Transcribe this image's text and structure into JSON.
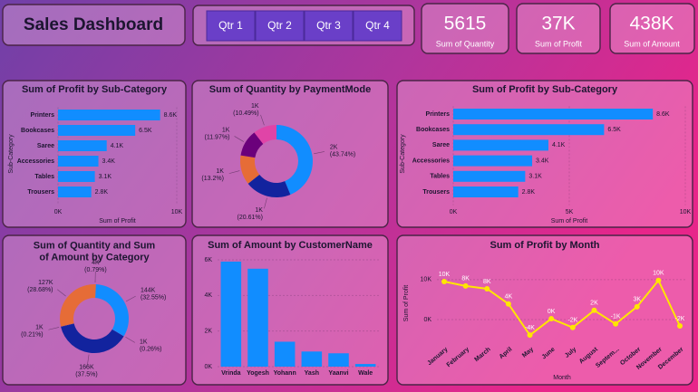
{
  "title": "Sales Dashboard",
  "slicer": [
    "Qtr 1",
    "Qtr 2",
    "Qtr 3",
    "Qtr 4"
  ],
  "kpis": [
    {
      "value": "5615",
      "label": "Sum of Quantity"
    },
    {
      "value": "37K",
      "label": "Sum of Profit"
    },
    {
      "value": "438K",
      "label": "Sum of Amount"
    }
  ],
  "chart_data": [
    {
      "type": "hbar",
      "title": "Sum of Profit by Sub-Category",
      "categories": [
        "Printers",
        "Bookcases",
        "Saree",
        "Accessories",
        "Tables",
        "Trousers"
      ],
      "values": [
        8600,
        6500,
        4100,
        3400,
        3100,
        2800
      ],
      "value_labels": [
        "8.6K",
        "6.5K",
        "4.1K",
        "3.4K",
        "3.1K",
        "2.8K"
      ],
      "color": "#118dff",
      "xlim": [
        0,
        10000
      ],
      "xticks": [
        {
          "value": 0,
          "label": "0K"
        },
        {
          "value": 10000,
          "label": "10K"
        }
      ],
      "xlabel": "Sum of Profit",
      "ylabel": "Sub-Category"
    },
    {
      "type": "donut",
      "title": "Sum of Quantity by PaymentMode",
      "values": [
        43.74,
        20.61,
        13.2,
        11.97,
        10.49
      ],
      "value_labels": [
        "2K (43.74%)",
        "1K (20.61%)",
        "1K (13.2%)",
        "1K (11.97%)",
        "1K (10.49%)"
      ],
      "colors": [
        "#118dff",
        "#12239e",
        "#e66c37",
        "#6b007b",
        "#e044a7"
      ]
    },
    {
      "type": "hbar",
      "title": "Sum of Profit by Sub-Category",
      "categories": [
        "Printers",
        "Bookcases",
        "Saree",
        "Accessories",
        "Tables",
        "Trousers"
      ],
      "values": [
        8600,
        6500,
        4100,
        3400,
        3100,
        2800
      ],
      "value_labels": [
        "8.6K",
        "6.5K",
        "4.1K",
        "3.4K",
        "3.1K",
        "2.8K"
      ],
      "color": "#118dff",
      "xlim": [
        0,
        10000
      ],
      "xticks": [
        {
          "value": 0,
          "label": "0K"
        },
        {
          "value": 5000,
          "label": "5K"
        },
        {
          "value": 10000,
          "label": "10K"
        }
      ],
      "xlabel": "Sum of Profit",
      "ylabel": "Sub-Category"
    },
    {
      "type": "donut",
      "title": "Sum of Quantity and Sum of Amount by Category",
      "values": [
        0.79,
        32.55,
        0.26,
        37.5,
        0.21,
        28.68
      ],
      "value_labels": [
        "4K (0.79%)",
        "144K (32.55%)",
        "1K (0.26%)",
        "166K (37.5%)",
        "1K (0.21%)",
        "127K (28.68%)"
      ],
      "colors": [
        "#e66c37",
        "#118dff",
        "#118dff",
        "#12239e",
        "#12239e",
        "#e66c37"
      ]
    },
    {
      "type": "vbar",
      "title": "Sum of Amount by CustomerName",
      "categories": [
        "Vrinda",
        "Yogesh",
        "Yohann",
        "Yash",
        "Yaanvi",
        "Wale"
      ],
      "values": [
        5900,
        5500,
        1400,
        850,
        750,
        150
      ],
      "color": "#118dff",
      "ylim": [
        0,
        6000
      ],
      "yticks": [
        {
          "value": 0,
          "label": "0K"
        },
        {
          "value": 2000,
          "label": "2K"
        },
        {
          "value": 4000,
          "label": "4K"
        },
        {
          "value": 6000,
          "label": "6K"
        }
      ]
    },
    {
      "type": "line",
      "title": "Sum of Profit by Month",
      "categories": [
        "January",
        "February",
        "March",
        "April",
        "May",
        "June",
        "July",
        "August",
        "Septem...",
        "October",
        "November",
        "December"
      ],
      "values": [
        9500,
        8400,
        7700,
        3900,
        -3900,
        200,
        -2000,
        2300,
        -1100,
        3200,
        9800,
        -1600
      ],
      "value_labels": [
        "10K",
        "8K",
        "8K",
        "4K",
        "-4K",
        "0K",
        "-2K",
        "2K",
        "-1K",
        "3K",
        "10K",
        "-2K"
      ],
      "color": "#ffe600",
      "ylim": [
        -5000,
        12000
      ],
      "yticks": [
        {
          "value": 0,
          "label": "0K"
        },
        {
          "value": 10000,
          "label": "10K"
        }
      ],
      "xlabel": "Month",
      "ylabel": "Sum of Profit"
    }
  ]
}
